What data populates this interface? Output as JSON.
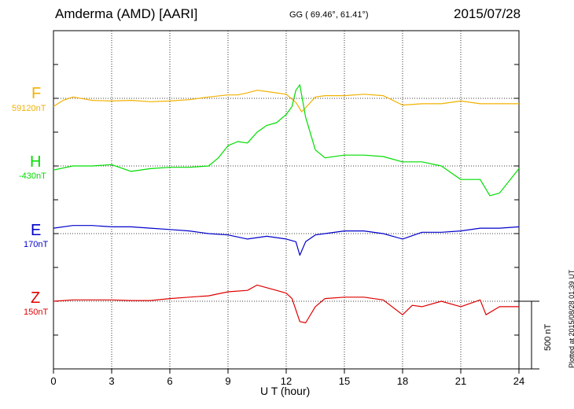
{
  "header": {
    "station": "Amderma (AMD)  [AARI]",
    "coords": "GG ( 69.46°,  61.41°)",
    "date": "2015/07/28"
  },
  "plotted_note": "Plotted at 2015/08/28 01:39 UT",
  "scale_label": "500 nT",
  "colors": {
    "F": "#f2b100",
    "H": "#00dd00",
    "E": "#0000cc",
    "Z": "#e00000"
  },
  "chart_data": {
    "type": "line",
    "xlabel": "U T (hour)",
    "xlim": [
      0,
      24
    ],
    "xticks": [
      "0",
      "3",
      "6",
      "9",
      "12",
      "15",
      "18",
      "21",
      "24"
    ],
    "scale_bar_nT": 500,
    "series": [
      {
        "name": "F",
        "baseline_label": "59120nT",
        "baseline_nT": 59120,
        "x": [
          0,
          0.5,
          1,
          2,
          3,
          4,
          5,
          6,
          7,
          8,
          9,
          9.5,
          10,
          10.5,
          11,
          11.5,
          12,
          12.5,
          12.8,
          13,
          13.5,
          14,
          15,
          16,
          17,
          18,
          19,
          20,
          21,
          22,
          23,
          24
        ],
        "y": [
          -60,
          -15,
          10,
          -15,
          -20,
          -15,
          -25,
          -20,
          -10,
          10,
          25,
          25,
          40,
          60,
          50,
          40,
          30,
          -30,
          -100,
          -70,
          10,
          20,
          20,
          30,
          20,
          -50,
          -40,
          -40,
          -20,
          -40,
          -40,
          -40
        ]
      },
      {
        "name": "H",
        "baseline_label": "-430nT",
        "baseline_nT": -430,
        "x": [
          0,
          1,
          2,
          3,
          4,
          5,
          6,
          7,
          8,
          8.5,
          9,
          9.5,
          10,
          10.5,
          11,
          11.5,
          12,
          12.3,
          12.5,
          12.7,
          13,
          13.5,
          14,
          15,
          16,
          17,
          18,
          19,
          20,
          21,
          22,
          22.5,
          23,
          24
        ],
        "y": [
          -30,
          0,
          0,
          10,
          -40,
          -20,
          -10,
          -10,
          0,
          60,
          150,
          180,
          170,
          250,
          300,
          320,
          380,
          440,
          560,
          600,
          360,
          120,
          60,
          80,
          80,
          70,
          30,
          30,
          0,
          -100,
          -100,
          -220,
          -200,
          -20
        ]
      },
      {
        "name": "E",
        "baseline_label": "170nT",
        "baseline_nT": 170,
        "x": [
          0,
          1,
          2,
          3,
          4,
          5,
          6,
          7,
          8,
          9,
          10,
          11,
          12,
          12.5,
          12.7,
          13,
          13.5,
          14,
          15,
          16,
          17,
          18,
          19,
          20,
          21,
          22,
          23,
          24
        ],
        "y": [
          40,
          60,
          60,
          50,
          50,
          40,
          30,
          20,
          0,
          -10,
          -40,
          -20,
          -40,
          -60,
          -160,
          -60,
          -10,
          0,
          20,
          20,
          0,
          -40,
          10,
          10,
          20,
          40,
          40,
          50
        ]
      },
      {
        "name": "Z",
        "baseline_label": "150nT",
        "baseline_nT": 150,
        "x": [
          0,
          1,
          2,
          3,
          4,
          5,
          6,
          7,
          8,
          9,
          10,
          10.5,
          11,
          11.5,
          12,
          12.3,
          12.7,
          13,
          13.5,
          14,
          15,
          16,
          17,
          18,
          18.5,
          19,
          20,
          21,
          22,
          22.3,
          23,
          24
        ],
        "y": [
          0,
          10,
          10,
          10,
          5,
          5,
          20,
          30,
          40,
          70,
          80,
          120,
          100,
          80,
          60,
          20,
          -150,
          -160,
          -40,
          20,
          30,
          30,
          10,
          -100,
          -30,
          -40,
          0,
          -40,
          10,
          -100,
          -40,
          -40
        ]
      }
    ]
  }
}
